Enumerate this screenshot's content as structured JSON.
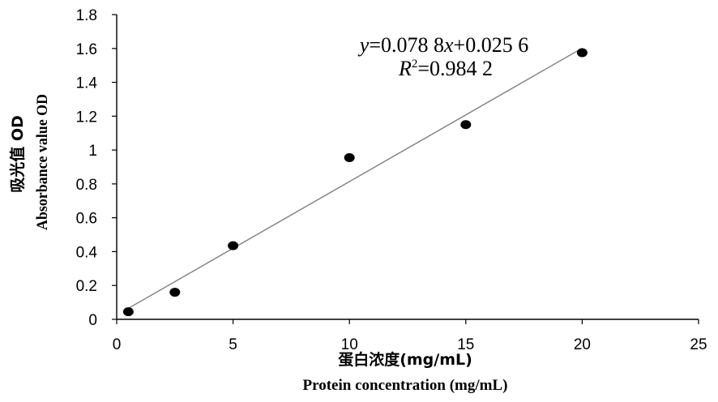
{
  "chart_data": {
    "type": "scatter",
    "xlabel_cn": "蛋白浓度(mg/mL)",
    "xlabel": "Protein concentration (mg/mL)",
    "ylabel_cn": "吸光值 OD",
    "ylabel": "Absorbance value OD",
    "xlim": [
      0,
      25
    ],
    "ylim": [
      0,
      1.8
    ],
    "xticks": [
      "0",
      "5",
      "10",
      "15",
      "20",
      "25"
    ],
    "yticks": [
      "0",
      "0.2",
      "0.4",
      "0.6",
      "0.8",
      "1",
      "1.2",
      "1.4",
      "1.6",
      "1.8"
    ],
    "series": [
      {
        "x": [
          0.5,
          2.5,
          5,
          10,
          15,
          20
        ],
        "y": [
          0.045,
          0.16,
          0.435,
          0.955,
          1.15,
          1.575
        ]
      }
    ],
    "trendline": {
      "slope": 0.0788,
      "intercept": 0.0256,
      "x_range": [
        0.5,
        20
      ]
    },
    "equation": {
      "y_var": "y",
      "eq_mid": "=0.078 8",
      "x_var": "x",
      "eq_end": "+0.025 6",
      "r_var": "R",
      "r_exp": "2",
      "r_val": "=0.984 2"
    },
    "grid": false,
    "legend": "none",
    "marker_color": "#000000",
    "line_color": "#7f7f7f"
  }
}
